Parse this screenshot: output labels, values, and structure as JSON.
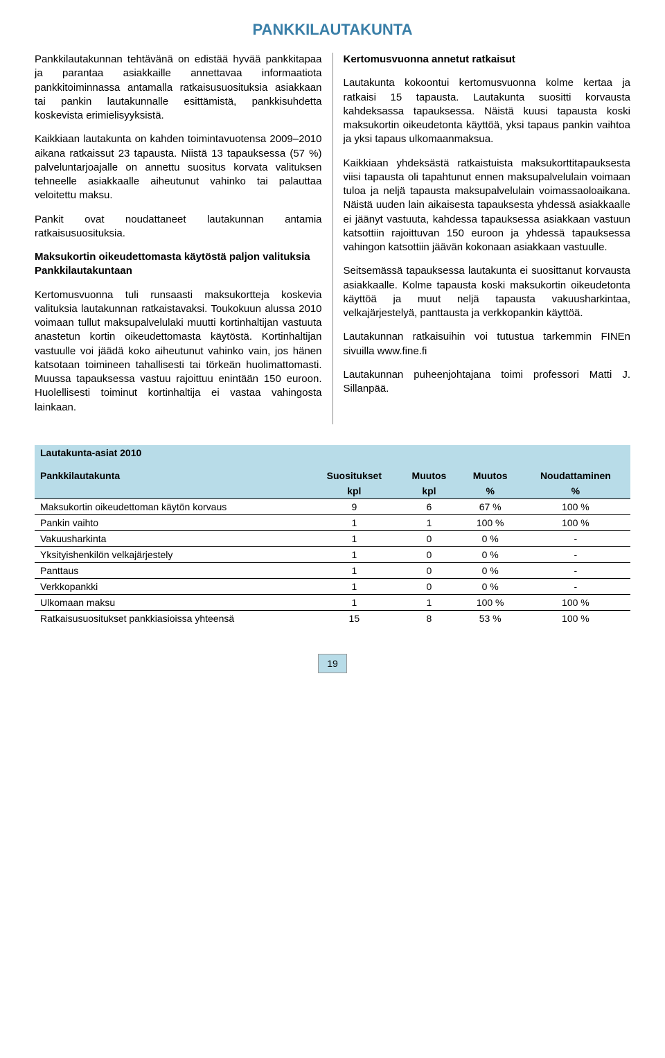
{
  "title": "PANKKILAUTAKUNTA",
  "left": {
    "p1": "Pankkilautakunnan tehtävänä on edistää hyvää pankkitapaa ja parantaa asiakkaille annettavaa informaatiota pankkitoiminnassa antamalla ratkaisusuosituksia asiakkaan tai pankin lautakunnalle esittämistä, pankkisuhdetta koskevista erimielisyyksistä.",
    "p2": "Kaikkiaan lautakunta on kahden toimintavuotensa 2009–2010 aikana ratkaissut 23 tapausta. Niistä 13 tapauksessa (57 %) palveluntarjoajalle on annettu suositus korvata valituksen tehneelle asiakkaalle aiheutunut vahinko tai palauttaa veloitettu maksu.",
    "p3": "Pankit ovat noudattaneet lautakunnan antamia ratkaisusuosituksia.",
    "h1": "Maksukortin oikeudettomasta käytöstä paljon valituksia Pankkilautakuntaan",
    "p4": "Kertomusvuonna tuli runsaasti maksukortteja koskevia valituksia lautakunnan ratkaistavaksi. Toukokuun alussa 2010 voimaan tullut maksupalvelulaki muutti kortinhaltijan vastuuta anastetun kortin oikeudettomasta käytöstä. Kortinhaltijan vastuulle voi jäädä koko aiheutunut vahinko vain, jos hänen katsotaan toimineen tahallisesti tai törkeän huolimattomasti. Muussa tapauksessa vastuu rajoittuu enintään 150 euroon. Huolellisesti toiminut kortinhaltija ei vastaa vahingosta lainkaan."
  },
  "right": {
    "h1": "Kertomusvuonna annetut ratkaisut",
    "p1": "Lautakunta kokoontui kertomusvuonna kolme kertaa ja ratkaisi 15 tapausta. Lautakunta suositti korvausta kahdeksassa tapauksessa. Näistä kuusi tapausta koski maksukortin oikeudetonta käyttöä, yksi tapaus pankin vaihtoa ja yksi tapaus ulkomaanmaksua.",
    "p2": "Kaikkiaan yhdeksästä ratkaistuista maksukorttitapauksesta viisi tapausta oli tapahtunut ennen maksupalvelulain voimaan tuloa ja neljä tapausta maksupalvelulain voimassaoloaikana. Näistä uuden lain aikaisesta tapauksesta yhdessä asiakkaalle ei jäänyt vastuuta, kahdessa tapauksessa asiakkaan vastuun katsottiin rajoittuvan 150 euroon ja yhdessä tapauksessa vahingon katsottiin jäävän kokonaan asiakkaan vastuulle.",
    "p3": "Seitsemässä tapauksessa lautakunta ei suosittanut korvausta asiakkaalle. Kolme tapausta koski maksukortin oikeudetonta käyttöä ja muut neljä tapausta vakuusharkintaa, velkajärjestelyä, panttausta ja verkkopankin käyttöä.",
    "p4": "Lautakunnan ratkaisuihin voi tutustua tarkemmin FINEn sivuilla www.fine.fi",
    "p5": "Lautakunnan puheenjohtajana toimi professori Matti J. Sillanpää."
  },
  "table": {
    "title": "Lautakunta-asiat 2010",
    "group_header": "Pankkilautakunta",
    "columns": [
      "Suositukset",
      "Muutos",
      "Muutos",
      "Noudattaminen"
    ],
    "subcolumns": [
      "kpl",
      "kpl",
      "%",
      "%"
    ],
    "rows": [
      [
        "Maksukortin oikeudettoman käytön korvaus",
        "9",
        "6",
        "67 %",
        "100 %"
      ],
      [
        "Pankin vaihto",
        "1",
        "1",
        "100 %",
        "100 %"
      ],
      [
        "Vakuusharkinta",
        "1",
        "0",
        "0 %",
        "-"
      ],
      [
        "Yksityishenkilön velkajärjestely",
        "1",
        "0",
        "0 %",
        "-"
      ],
      [
        "Panttaus",
        "1",
        "0",
        "0 %",
        "-"
      ],
      [
        "Verkkopankki",
        "1",
        "0",
        "0 %",
        "-"
      ],
      [
        "Ulkomaan maksu",
        "1",
        "1",
        "100 %",
        "100 %"
      ],
      [
        "Ratkaisusuositukset pankkiasioissa yhteensä",
        "15",
        "8",
        "53 %",
        "100 %"
      ]
    ]
  },
  "page_number": "19"
}
